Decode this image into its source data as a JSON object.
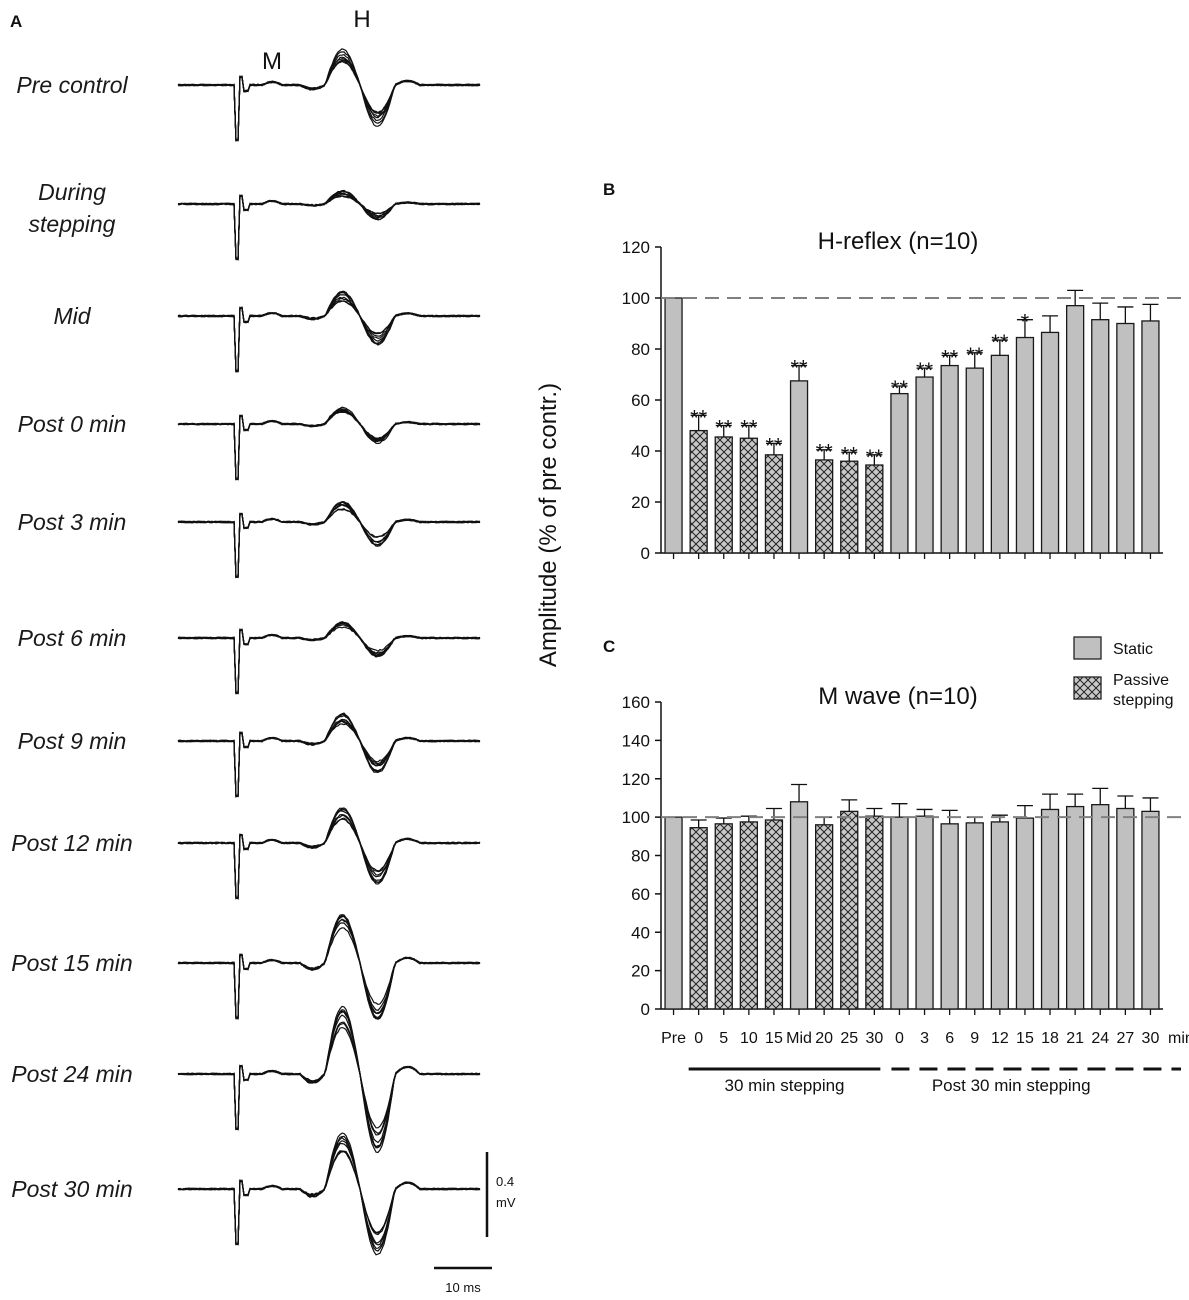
{
  "panel_a": {
    "letter": "A",
    "m_label": "M",
    "h_label": "H",
    "rows": [
      {
        "label": "Pre control",
        "h_amp": 1.0,
        "m_amp": 1.0
      },
      {
        "label": "During\nstepping",
        "h_amp": 0.35,
        "m_amp": 1.0
      },
      {
        "label": "Mid",
        "h_amp": 0.65,
        "m_amp": 1.0
      },
      {
        "label": "Post 0 min",
        "h_amp": 0.45,
        "m_amp": 1.0
      },
      {
        "label": "Post 3 min",
        "h_amp": 0.55,
        "m_amp": 1.0
      },
      {
        "label": "Post 6 min",
        "h_amp": 0.45,
        "m_amp": 1.0
      },
      {
        "label": "Post 9 min",
        "h_amp": 0.75,
        "m_amp": 1.0
      },
      {
        "label": "Post 12 min",
        "h_amp": 1.0,
        "m_amp": 1.0
      },
      {
        "label": "Post 15 min",
        "h_amp": 1.3,
        "m_amp": 1.0
      },
      {
        "label": "Post 24 min",
        "h_amp": 1.8,
        "m_amp": 1.0
      },
      {
        "label": "Post 30 min",
        "h_amp": 1.6,
        "m_amp": 1.0
      }
    ],
    "scale_bar": {
      "amplitude_label_1": "0.4",
      "amplitude_label_2": "mV",
      "time_label": "10 ms"
    }
  },
  "chart_data": [
    {
      "panel": "B",
      "type": "bar",
      "title": "H-reflex (n=10)",
      "ylabel": "Amplitude (% of pre contr.)",
      "ylim": [
        0,
        120
      ],
      "yticks": [
        0,
        20,
        40,
        60,
        80,
        100,
        120
      ],
      "reference_line": 100,
      "categories": [
        "Pre",
        "0",
        "5",
        "10",
        "15",
        "Mid",
        "20",
        "25",
        "30",
        "0",
        "3",
        "6",
        "9",
        "12",
        "15",
        "18",
        "21",
        "24",
        "27",
        "30"
      ],
      "condition": [
        "static",
        "passive",
        "passive",
        "passive",
        "passive",
        "static",
        "passive",
        "passive",
        "passive",
        "static",
        "static",
        "static",
        "static",
        "static",
        "static",
        "static",
        "static",
        "static",
        "static",
        "static"
      ],
      "values": [
        100,
        48,
        45.5,
        45,
        38.5,
        67.5,
        36.5,
        36,
        34.5,
        62.5,
        69,
        73.5,
        72.5,
        77.5,
        84.5,
        86.5,
        97,
        91.5,
        90,
        91
      ],
      "errors": [
        0,
        6,
        4.5,
        5,
        4.5,
        6,
        4,
        3.5,
        4,
        3,
        3.5,
        4,
        6,
        6,
        7,
        6.5,
        6,
        6.5,
        6.5,
        6.5
      ],
      "significance": [
        "",
        "**",
        "**",
        "**",
        "**",
        "**",
        "**",
        "**",
        "**",
        "**",
        "**",
        "**",
        "**",
        "**",
        "*",
        "",
        "",
        "",
        "",
        ""
      ]
    },
    {
      "panel": "C",
      "type": "bar",
      "title": "M wave (n=10)",
      "ylabel": "Amplitude (% of pre contr.)",
      "ylim": [
        0,
        160
      ],
      "yticks": [
        0,
        20,
        40,
        60,
        80,
        100,
        120,
        140,
        160
      ],
      "reference_line": 100,
      "categories": [
        "Pre",
        "0",
        "5",
        "10",
        "15",
        "Mid",
        "20",
        "25",
        "30",
        "0",
        "3",
        "6",
        "9",
        "12",
        "15",
        "18",
        "21",
        "24",
        "27",
        "30"
      ],
      "x_unit_label": "min",
      "condition": [
        "static",
        "passive",
        "passive",
        "passive",
        "passive",
        "static",
        "passive",
        "passive",
        "passive",
        "static",
        "static",
        "static",
        "static",
        "static",
        "static",
        "static",
        "static",
        "static",
        "static",
        "static"
      ],
      "values": [
        100,
        94.5,
        96.5,
        97.5,
        98.5,
        108,
        96,
        103,
        100.5,
        100,
        100.5,
        96.5,
        97,
        97.5,
        99.5,
        104,
        105.5,
        106.5,
        104.5,
        103
      ],
      "errors": [
        0,
        4,
        3,
        3,
        6,
        9,
        4,
        6,
        4,
        7,
        3.5,
        7,
        3,
        3.5,
        6.5,
        8,
        6.5,
        8.5,
        6.5,
        7
      ],
      "legend": [
        {
          "name": "Static",
          "pattern": "solid"
        },
        {
          "name": "Passive\nstepping",
          "pattern": "crosshatch"
        }
      ],
      "groups": [
        {
          "label": "30 min stepping",
          "line": "solid"
        },
        {
          "label": "Post 30 min stepping",
          "line": "dashed"
        }
      ]
    }
  ],
  "colors": {
    "bar_fill": "#c0c0c0",
    "bar_stroke": "#1a1a1a",
    "reference_line": "#808080",
    "trace": "#111111",
    "hatch_bg": "#c8c8c8"
  }
}
